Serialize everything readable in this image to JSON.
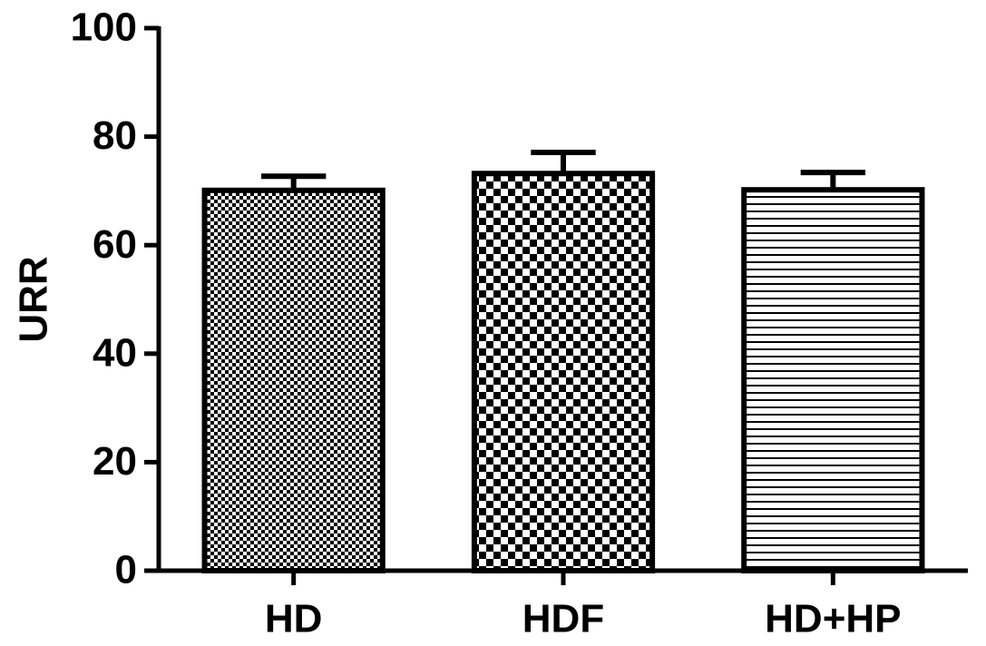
{
  "chart_data": {
    "type": "bar",
    "y_label": "URR",
    "categories": [
      "HD",
      "HDF",
      "HD+HP"
    ],
    "values": [
      70.1,
      73.2,
      70.2
    ],
    "errors": [
      2.6,
      3.9,
      3.2
    ],
    "color": "#000000",
    "ylim": [
      0,
      100
    ],
    "yticks": [
      0,
      20,
      40,
      60,
      80,
      100
    ],
    "grid": false
  }
}
